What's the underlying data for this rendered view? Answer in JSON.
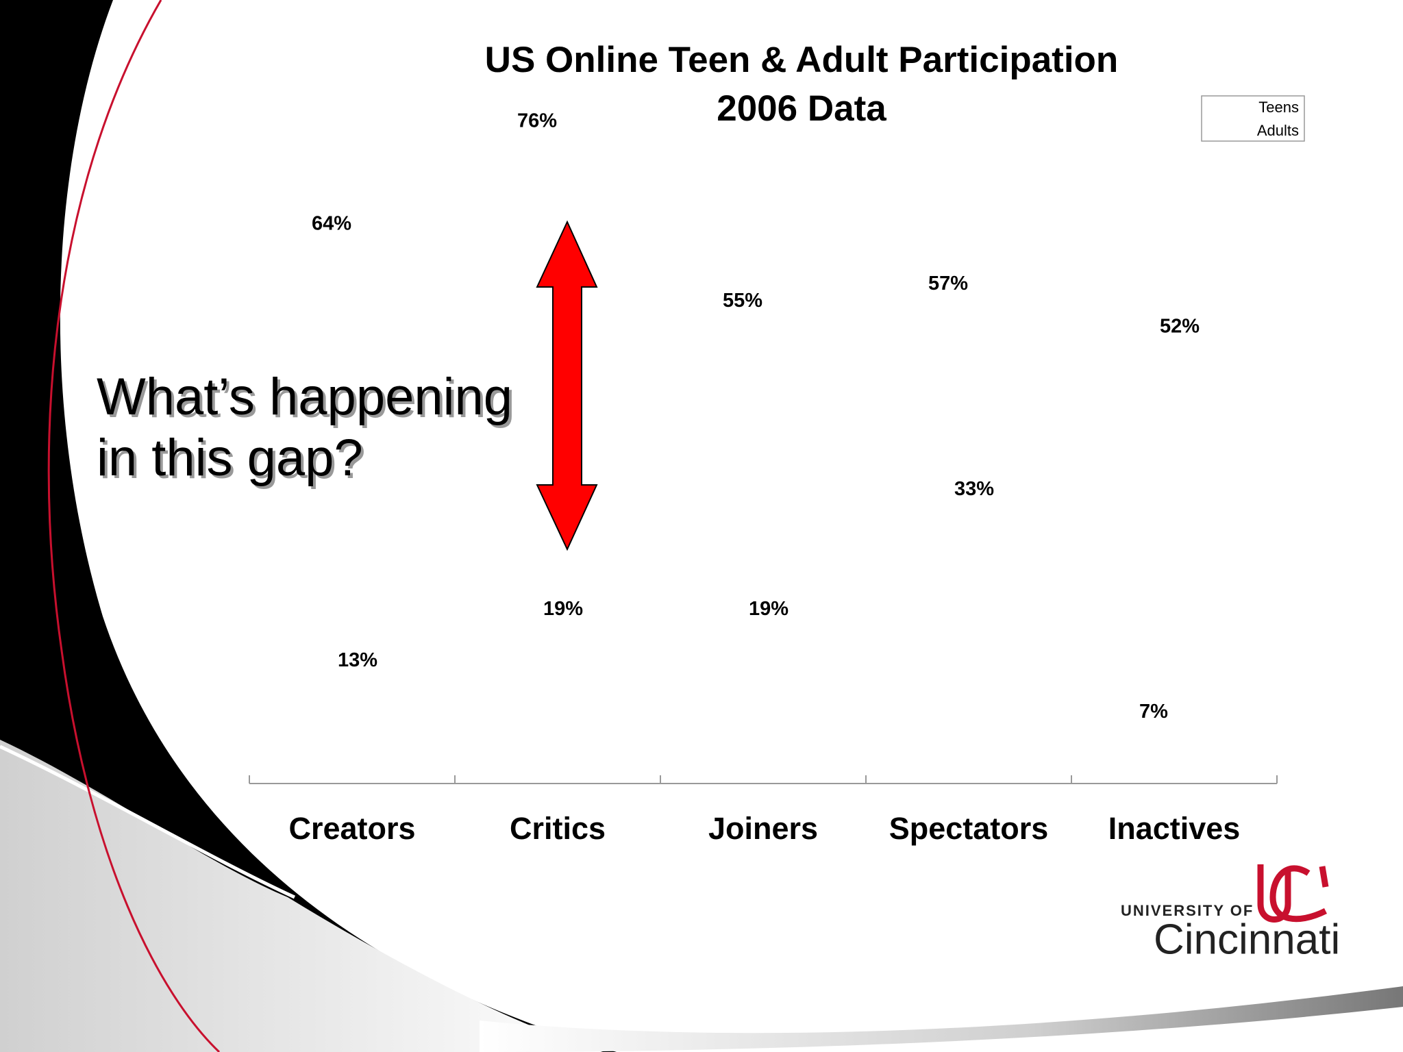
{
  "chart_data": {
    "type": "bar",
    "title": "US Online Teen & Adult Participation",
    "subtitle": "2006 Data",
    "categories": [
      "Creators",
      "Critics",
      "Joiners",
      "Spectators",
      "Inactives"
    ],
    "series": [
      {
        "name": "Teens",
        "values": [
          64,
          76,
          55,
          57,
          7
        ],
        "value_labels": [
          "64%",
          "76%",
          "55%",
          "57%",
          "7%"
        ]
      },
      {
        "name": "Adults",
        "values": [
          13,
          19,
          19,
          33,
          52
        ],
        "value_labels": [
          "13%",
          "19%",
          "19%",
          "33%",
          "52%"
        ]
      }
    ],
    "ylim": [
      0,
      80
    ],
    "annotation": [
      "What’s happening",
      "in this gap?"
    ]
  },
  "logo": {
    "line1": "UNIVERSITY OF",
    "line2": "Cincinnati"
  }
}
